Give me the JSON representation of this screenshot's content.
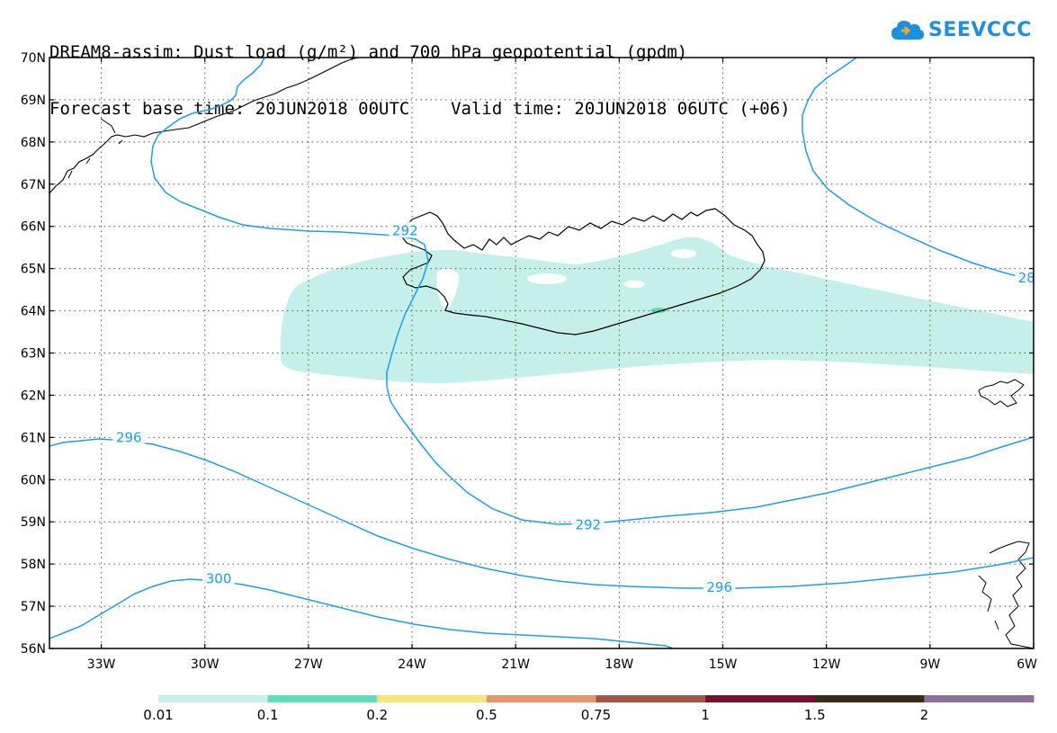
{
  "header": {
    "line1": "DREAM8-assim: Dust load (g/m²) and 700 hPa geopotential (gpdm)",
    "line2": "Forecast base time: 20JUN2018 00UTC    Valid time: 20JUN2018 06UTC (+06)"
  },
  "logo": {
    "text": "SEEVCCC",
    "cloud_color": "#1e8fe0",
    "accent_color": "#f5a623"
  },
  "map": {
    "lon_range": [
      -34.5,
      -6
    ],
    "lat_range": [
      56,
      70
    ],
    "lat_ticks": [
      {
        "value": 70,
        "label": "70N"
      },
      {
        "value": 69,
        "label": "69N"
      },
      {
        "value": 68,
        "label": "68N"
      },
      {
        "value": 67,
        "label": "67N"
      },
      {
        "value": 66,
        "label": "66N"
      },
      {
        "value": 65,
        "label": "65N"
      },
      {
        "value": 64,
        "label": "64N"
      },
      {
        "value": 63,
        "label": "63N"
      },
      {
        "value": 62,
        "label": "62N"
      },
      {
        "value": 61,
        "label": "61N"
      },
      {
        "value": 60,
        "label": "60N"
      },
      {
        "value": 59,
        "label": "59N"
      },
      {
        "value": 58,
        "label": "58N"
      },
      {
        "value": 57,
        "label": "57N"
      },
      {
        "value": 56,
        "label": "56N"
      }
    ],
    "lon_ticks": [
      {
        "value": -33,
        "label": "33W"
      },
      {
        "value": -30,
        "label": "30W"
      },
      {
        "value": -27,
        "label": "27W"
      },
      {
        "value": -24,
        "label": "24W"
      },
      {
        "value": -21,
        "label": "21W"
      },
      {
        "value": -18,
        "label": "18W"
      },
      {
        "value": -15,
        "label": "15W"
      },
      {
        "value": -12,
        "label": "12W"
      },
      {
        "value": -9,
        "label": "9W"
      },
      {
        "value": -6,
        "label": "6W"
      }
    ],
    "grid": true,
    "contour_color": "#1e9ee8",
    "dust_color": "#c5f0ea",
    "dust_color_2": "#5fdcb8",
    "contour_labels": [
      {
        "text": "292",
        "lon": -24.2,
        "lat": 65.9
      },
      {
        "text": "292",
        "lon": -18.9,
        "lat": 58.93
      },
      {
        "text": "296",
        "lon": -32.2,
        "lat": 61.0
      },
      {
        "text": "296",
        "lon": -15.1,
        "lat": 57.45
      },
      {
        "text": "300",
        "lon": -29.6,
        "lat": 57.65
      },
      {
        "text": "28",
        "lon": -6.2,
        "lat": 64.78
      }
    ]
  },
  "legend": {
    "colors": [
      "#c5f0ea",
      "#5fdcb8",
      "#f5e57a",
      "#e89568",
      "#a85548",
      "#7a0f2e",
      "#3b2a14",
      "#8e6e9e"
    ],
    "labels": [
      "0.01",
      "0.1",
      "0.2",
      "0.5",
      "0.75",
      "1",
      "1.5",
      "2"
    ]
  }
}
